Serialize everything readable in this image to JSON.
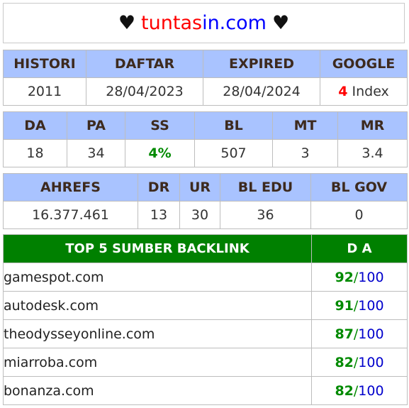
{
  "header": {
    "heart_left": "♥",
    "heart_right": "♥",
    "domain_part1": "tuntas",
    "domain_part2": "in.com"
  },
  "table1": {
    "headers": [
      "HISTORI",
      "DAFTAR",
      "EXPIRED",
      "GOOGLE"
    ],
    "values": {
      "histori": "2011",
      "daftar": "28/04/2023",
      "expired": "28/04/2024",
      "google_count": "4",
      "google_label": "Index"
    }
  },
  "table2": {
    "headers": [
      "DA",
      "PA",
      "SS",
      "BL",
      "MT",
      "MR"
    ],
    "values": [
      "18",
      "34",
      "4%",
      "507",
      "3",
      "3.4"
    ]
  },
  "table3": {
    "headers": [
      "AHREFS",
      "DR",
      "UR",
      "BL EDU",
      "BL GOV"
    ],
    "values": [
      "16.377.461",
      "13",
      "30",
      "36",
      "0"
    ]
  },
  "backlinks": {
    "header_source": "TOP 5 SUMBER BACKLINK",
    "header_da": "D A",
    "rows": [
      {
        "site": "gamespot.com",
        "da": "92",
        "max": "100"
      },
      {
        "site": "autodesk.com",
        "da": "91",
        "max": "100"
      },
      {
        "site": "theodysseyonline.com",
        "da": "87",
        "max": "100"
      },
      {
        "site": "miarroba.com",
        "da": "82",
        "max": "100"
      },
      {
        "site": "bonanza.com",
        "da": "82",
        "max": "100"
      }
    ],
    "separator": "/"
  },
  "colors": {
    "header_bg": "#a9c3ff",
    "backlink_header_bg": "#008000",
    "accent_red": "#ff0000",
    "accent_blue": "#0000ff",
    "accent_green": "#008a00"
  }
}
